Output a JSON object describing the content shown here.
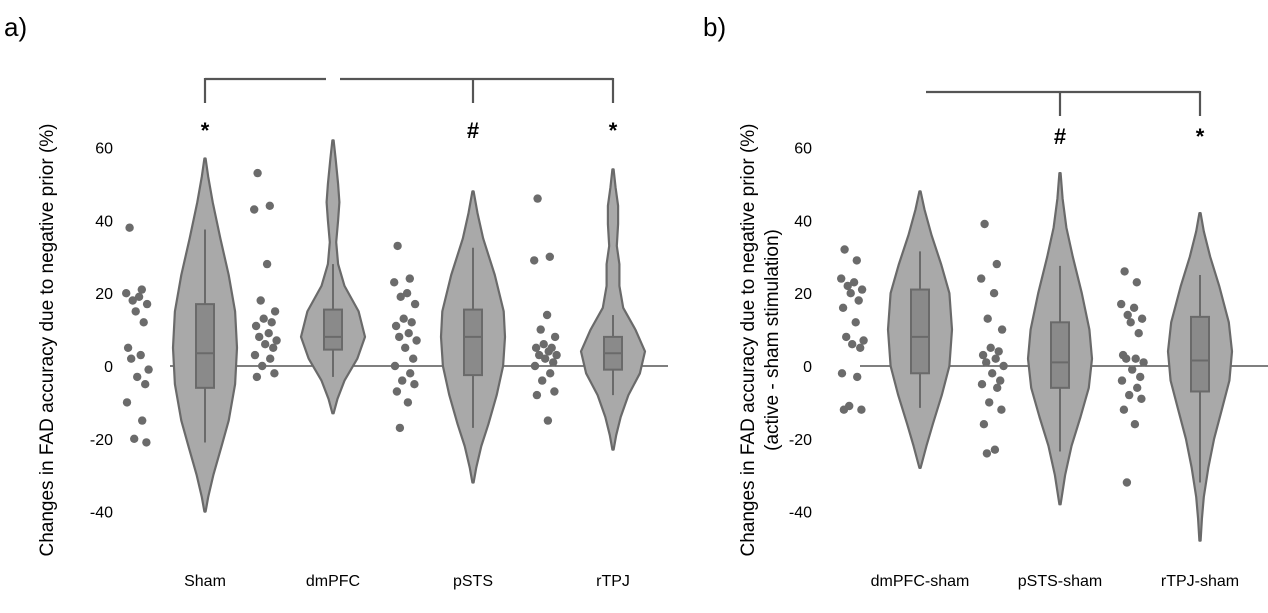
{
  "chart_data": [
    {
      "panel_label": "a)",
      "type": "violin",
      "ylabel": "Changes in FAD accuracy due to negative prior (%)",
      "ylabel_line2": "",
      "yticks": [
        -40,
        -20,
        0,
        20,
        40,
        60
      ],
      "ytick_labels": [
        "-40",
        "-20",
        "0",
        "20",
        "40",
        "60"
      ],
      "ylim": [
        -45,
        67
      ],
      "zero_line": true,
      "groups": [
        {
          "name": "Sham",
          "points": [
            38,
            21,
            20,
            19,
            18,
            17,
            15,
            12,
            5,
            3,
            2,
            -1,
            -3,
            -5,
            -10,
            -15,
            -20,
            -21
          ],
          "box": {
            "q1": -6,
            "median": 3.5,
            "q3": 17,
            "whisker_low": -21,
            "whisker_high": 37.5
          },
          "violin": {
            "min": -40,
            "max": 57,
            "profile": [
              [
                57,
                0.01
              ],
              [
                52,
                0.05
              ],
              [
                45,
                0.12
              ],
              [
                35,
                0.24
              ],
              [
                25,
                0.37
              ],
              [
                15,
                0.47
              ],
              [
                5,
                0.5
              ],
              [
                -5,
                0.47
              ],
              [
                -15,
                0.37
              ],
              [
                -22,
                0.26
              ],
              [
                -30,
                0.13
              ],
              [
                -36,
                0.05
              ],
              [
                -40,
                0.01
              ]
            ]
          },
          "sig": "*"
        },
        {
          "name": "dmPFC",
          "points": [
            53,
            44,
            43,
            28,
            18,
            15,
            13,
            12,
            11,
            9,
            8,
            7,
            6,
            5,
            3,
            2,
            0,
            -2,
            -3
          ],
          "box": {
            "q1": 4.5,
            "median": 8,
            "q3": 15.5,
            "whisker_low": -3,
            "whisker_high": 28
          },
          "violin": {
            "min": -13,
            "max": 62,
            "profile": [
              [
                62,
                0.01
              ],
              [
                57,
                0.04
              ],
              [
                50,
                0.08
              ],
              [
                45,
                0.1
              ],
              [
                40,
                0.08
              ],
              [
                34,
                0.05
              ],
              [
                28,
                0.08
              ],
              [
                22,
                0.18
              ],
              [
                15,
                0.4
              ],
              [
                8,
                0.5
              ],
              [
                2,
                0.38
              ],
              [
                -4,
                0.18
              ],
              [
                -9,
                0.07
              ],
              [
                -13,
                0.01
              ]
            ]
          },
          "sig": ""
        },
        {
          "name": "pSTS",
          "points": [
            33,
            24,
            23,
            20,
            19,
            17,
            13,
            12,
            11,
            9,
            8,
            7,
            5,
            2,
            0,
            -2,
            -4,
            -5,
            -7,
            -10,
            -17
          ],
          "box": {
            "q1": -2.5,
            "median": 8,
            "q3": 15.5,
            "whisker_low": -17,
            "whisker_high": 32.5
          },
          "violin": {
            "min": -32,
            "max": 48,
            "profile": [
              [
                48,
                0.01
              ],
              [
                42,
                0.07
              ],
              [
                35,
                0.16
              ],
              [
                25,
                0.34
              ],
              [
                15,
                0.48
              ],
              [
                8,
                0.5
              ],
              [
                0,
                0.47
              ],
              [
                -8,
                0.37
              ],
              [
                -16,
                0.24
              ],
              [
                -22,
                0.13
              ],
              [
                -28,
                0.05
              ],
              [
                -32,
                0.01
              ]
            ]
          },
          "sig": "#"
        },
        {
          "name": "rTPJ",
          "points": [
            46,
            30,
            29,
            14,
            10,
            8,
            6,
            5,
            5,
            4,
            3,
            3,
            2,
            1,
            0,
            -2,
            -4,
            -7,
            -8,
            -15
          ],
          "box": {
            "q1": -1,
            "median": 3.5,
            "q3": 8,
            "whisker_low": -8,
            "whisker_high": 14
          },
          "violin": {
            "min": -23,
            "max": 54,
            "profile": [
              [
                54,
                0.01
              ],
              [
                49,
                0.04
              ],
              [
                44,
                0.08
              ],
              [
                39,
                0.08
              ],
              [
                33,
                0.06
              ],
              [
                28,
                0.1
              ],
              [
                22,
                0.1
              ],
              [
                16,
                0.16
              ],
              [
                10,
                0.35
              ],
              [
                4,
                0.5
              ],
              [
                -2,
                0.42
              ],
              [
                -8,
                0.24
              ],
              [
                -14,
                0.12
              ],
              [
                -19,
                0.05
              ],
              [
                -23,
                0.01
              ]
            ]
          },
          "sig": "*"
        }
      ],
      "bracket": {
        "from": "Sham",
        "to": "rTPJ",
        "gap_at_group": "dmPFC",
        "ticks": [
          "Sham",
          "pSTS",
          "rTPJ"
        ]
      }
    },
    {
      "panel_label": "b)",
      "type": "violin",
      "ylabel": "Changes in FAD accuracy due to negative prior (%)",
      "ylabel_line2": "(active - sham stimulation)",
      "yticks": [
        -40,
        -20,
        0,
        20,
        40,
        60
      ],
      "ytick_labels": [
        "-40",
        "-20",
        "0",
        "20",
        "40",
        "60"
      ],
      "ylim": [
        -45,
        67
      ],
      "zero_line": true,
      "groups": [
        {
          "name": "dmPFC-sham",
          "points": [
            32,
            29,
            24,
            23,
            22,
            21,
            20,
            18,
            16,
            12,
            8,
            7,
            6,
            5,
            -2,
            -3,
            -11,
            -12,
            -12
          ],
          "box": {
            "q1": -2,
            "median": 8,
            "q3": 21,
            "whisker_low": -11.5,
            "whisker_high": 31.5
          },
          "violin": {
            "min": -28,
            "max": 48,
            "profile": [
              [
                48,
                0.01
              ],
              [
                43,
                0.07
              ],
              [
                36,
                0.18
              ],
              [
                28,
                0.33
              ],
              [
                20,
                0.46
              ],
              [
                10,
                0.5
              ],
              [
                0,
                0.46
              ],
              [
                -8,
                0.34
              ],
              [
                -16,
                0.2
              ],
              [
                -22,
                0.1
              ],
              [
                -28,
                0.01
              ]
            ]
          },
          "sig": ""
        },
        {
          "name": "pSTS-sham",
          "points": [
            39,
            28,
            24,
            20,
            13,
            10,
            5,
            4,
            3,
            2,
            1,
            0,
            -2,
            -4,
            -5,
            -6,
            -10,
            -12,
            -16,
            -23,
            -24
          ],
          "box": {
            "q1": -6,
            "median": 1,
            "q3": 12,
            "whisker_low": -23.5,
            "whisker_high": 27.5
          },
          "violin": {
            "min": -38,
            "max": 53,
            "profile": [
              [
                53,
                0.01
              ],
              [
                46,
                0.04
              ],
              [
                38,
                0.1
              ],
              [
                30,
                0.2
              ],
              [
                20,
                0.34
              ],
              [
                10,
                0.46
              ],
              [
                2,
                0.5
              ],
              [
                -6,
                0.45
              ],
              [
                -14,
                0.32
              ],
              [
                -22,
                0.18
              ],
              [
                -30,
                0.08
              ],
              [
                -38,
                0.01
              ]
            ]
          },
          "sig": "#"
        },
        {
          "name": "rTPJ-sham",
          "points": [
            26,
            23,
            17,
            16,
            14,
            13,
            12,
            9,
            3,
            2,
            2,
            1,
            -1,
            -3,
            -4,
            -6,
            -8,
            -9,
            -12,
            -16,
            -32
          ],
          "box": {
            "q1": -7,
            "median": 1.5,
            "q3": 13.5,
            "whisker_low": -32,
            "whisker_high": 25
          },
          "violin": {
            "min": -48,
            "max": 42,
            "profile": [
              [
                42,
                0.01
              ],
              [
                37,
                0.06
              ],
              [
                30,
                0.16
              ],
              [
                22,
                0.3
              ],
              [
                12,
                0.45
              ],
              [
                4,
                0.5
              ],
              [
                -4,
                0.46
              ],
              [
                -12,
                0.34
              ],
              [
                -20,
                0.22
              ],
              [
                -28,
                0.13
              ],
              [
                -36,
                0.06
              ],
              [
                -42,
                0.03
              ],
              [
                -48,
                0.01
              ]
            ]
          },
          "sig": "*"
        }
      ],
      "bracket": {
        "from": "dmPFC-sham",
        "to": "rTPJ-sham",
        "gap_at_group": "",
        "ticks": [
          "pSTS-sham",
          "rTPJ-sham"
        ]
      }
    }
  ],
  "colors": {
    "violin_fill": "#a9a9a9",
    "outline": "#6a6a6a",
    "box_fill": "#8a8a8a",
    "points": "#6b6b6b",
    "bracket": "#555555",
    "zero_line": "#555555"
  }
}
